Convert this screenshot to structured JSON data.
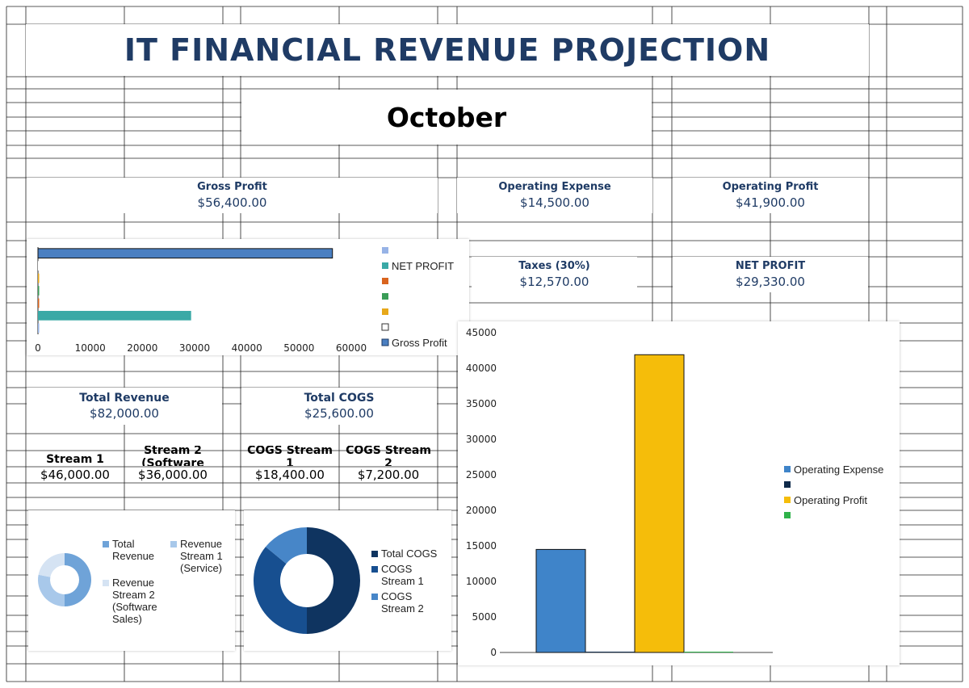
{
  "title": "IT FINANCIAL REVENUE PROJECTION",
  "month": "October",
  "kpis": {
    "gross_profit": {
      "label": "Gross Profit",
      "value": "$56,400.00"
    },
    "operating_expense": {
      "label": "Operating Expense",
      "value": "$14,500.00"
    },
    "operating_profit": {
      "label": "Operating Profit",
      "value": "$41,900.00"
    },
    "taxes": {
      "label": "Taxes (30%)",
      "value": "$12,570.00"
    },
    "net_profit": {
      "label": "NET PROFIT",
      "value": "$29,330.00"
    },
    "total_revenue": {
      "label": "Total Revenue",
      "value": "$82,000.00"
    },
    "total_cogs": {
      "label": "Total COGS",
      "value": "$25,600.00"
    }
  },
  "streams": [
    {
      "label": "Stream 1",
      "value": "$46,000.00"
    },
    {
      "label": "Stream 2 (Software",
      "value": "$36,000.00"
    },
    {
      "label": "COGS Stream 1",
      "value": "$18,400.00"
    },
    {
      "label": "COGS Stream 2",
      "value": "$7,200.00"
    }
  ],
  "chart_data": [
    {
      "type": "bar",
      "orientation": "horizontal",
      "xlim": [
        0,
        60000
      ],
      "ticks": [
        0,
        10000,
        20000,
        30000,
        40000,
        50000,
        60000
      ],
      "tick_labels": [
        "0",
        "10000",
        "20000",
        "30000",
        "40000",
        "50000",
        "60000"
      ],
      "series": [
        {
          "name": "Gross Profit",
          "value": 56400,
          "color": "#4a7fc1"
        },
        {
          "name": "",
          "value": 0,
          "color": "#ffffff"
        },
        {
          "name": "",
          "value": 0,
          "color": "#e7a81a"
        },
        {
          "name": "",
          "value": 0,
          "color": "#3a9d57"
        },
        {
          "name": "",
          "value": 0,
          "color": "#d9641e"
        },
        {
          "name": "NET PROFIT",
          "value": 29330,
          "color": "#3aa9a6"
        },
        {
          "name": "",
          "value": 0,
          "color": "#97b3e6"
        }
      ],
      "legend_position": "right"
    },
    {
      "type": "pie",
      "variant": "donut",
      "slices": [
        {
          "name": "Total Revenue",
          "value": 82000,
          "color": "#6fa3d8"
        },
        {
          "name": "Revenue Stream 1 (Service)",
          "value": 46000,
          "color": "#a8c8ea"
        },
        {
          "name": "Revenue Stream 2 (Software Sales)",
          "value": 36000,
          "color": "#d5e3f3"
        }
      ],
      "legend_position": "right"
    },
    {
      "type": "pie",
      "variant": "donut",
      "slices": [
        {
          "name": "Total COGS",
          "value": 25600,
          "color": "#0f3460"
        },
        {
          "name": "COGS Stream 1",
          "value": 18400,
          "color": "#174f90"
        },
        {
          "name": "COGS Stream 2",
          "value": 7200,
          "color": "#4786c8"
        }
      ],
      "legend_position": "right"
    },
    {
      "type": "bar",
      "orientation": "vertical",
      "ylim": [
        0,
        45000
      ],
      "ticks": [
        0,
        5000,
        10000,
        15000,
        20000,
        25000,
        30000,
        35000,
        40000,
        45000
      ],
      "tick_labels": [
        "0",
        "5000",
        "10000",
        "15000",
        "20000",
        "25000",
        "30000",
        "35000",
        "40000",
        "45000"
      ],
      "series": [
        {
          "name": "Operating Expense",
          "value": 14500,
          "color": "#3f84c9"
        },
        {
          "name": "",
          "value": 0,
          "color": "#0f2a4a"
        },
        {
          "name": "Operating Profit",
          "value": 41900,
          "color": "#f5bd0a"
        },
        {
          "name": "",
          "value": 0,
          "color": "#2fb24a"
        }
      ],
      "legend_position": "right"
    }
  ]
}
